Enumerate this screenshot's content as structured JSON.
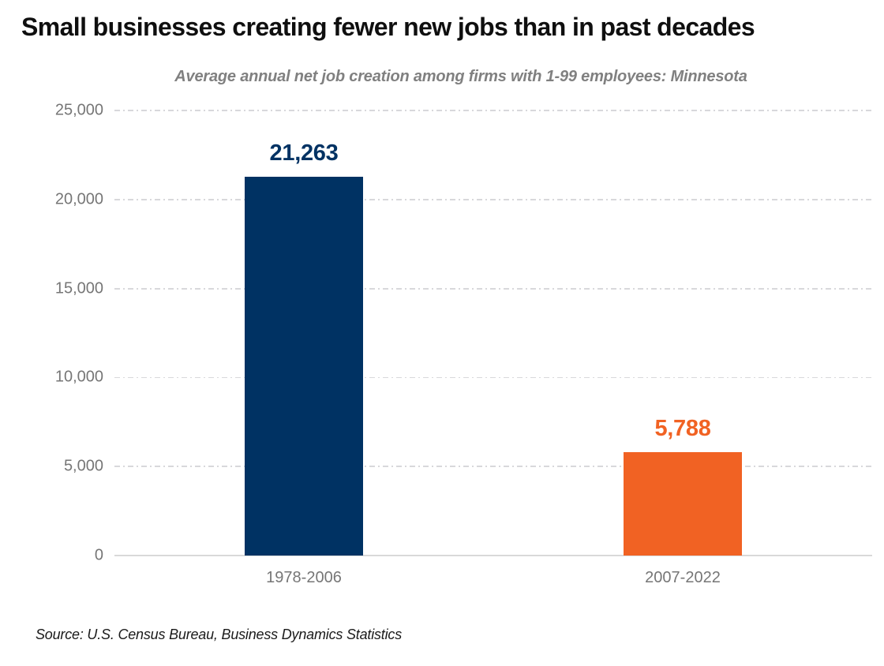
{
  "header": {
    "title": "Small businesses creating fewer new jobs than in past decades",
    "subtitle": "Average annual net job creation among firms with 1-99 employees: Minnesota"
  },
  "chart_data": {
    "type": "bar",
    "title": "Small businesses creating fewer new jobs than in past decades",
    "subtitle": "Average annual net job creation among firms with 1-99 employees: Minnesota",
    "categories": [
      "1978-2006",
      "2007-2022"
    ],
    "values": [
      21263,
      5788
    ],
    "value_labels": [
      "21,263",
      "5,788"
    ],
    "bar_colors": [
      "#003263",
      "#F16223"
    ],
    "xlabel": "",
    "ylabel": "",
    "ylim": [
      0,
      25000
    ],
    "ytick_step": 5000,
    "ytick_labels": [
      "0",
      "5,000",
      "10,000",
      "15,000",
      "20,000",
      "25,000"
    ],
    "grid": "horizontal dashed, solid baseline at 0",
    "legend": "none"
  },
  "footer": {
    "source": "Source: U.S. Census Bureau, Business Dynamics Statistics"
  },
  "colors": {
    "background": "#FFFFFF",
    "title_text": "#0F0F0F",
    "subtitle_text": "#808080",
    "axis_text": "#767676",
    "gridline": "#D8D8DB",
    "baseline": "#D9D9D9",
    "bar_1978_2006": "#003263",
    "bar_2007_2022": "#F16223"
  }
}
